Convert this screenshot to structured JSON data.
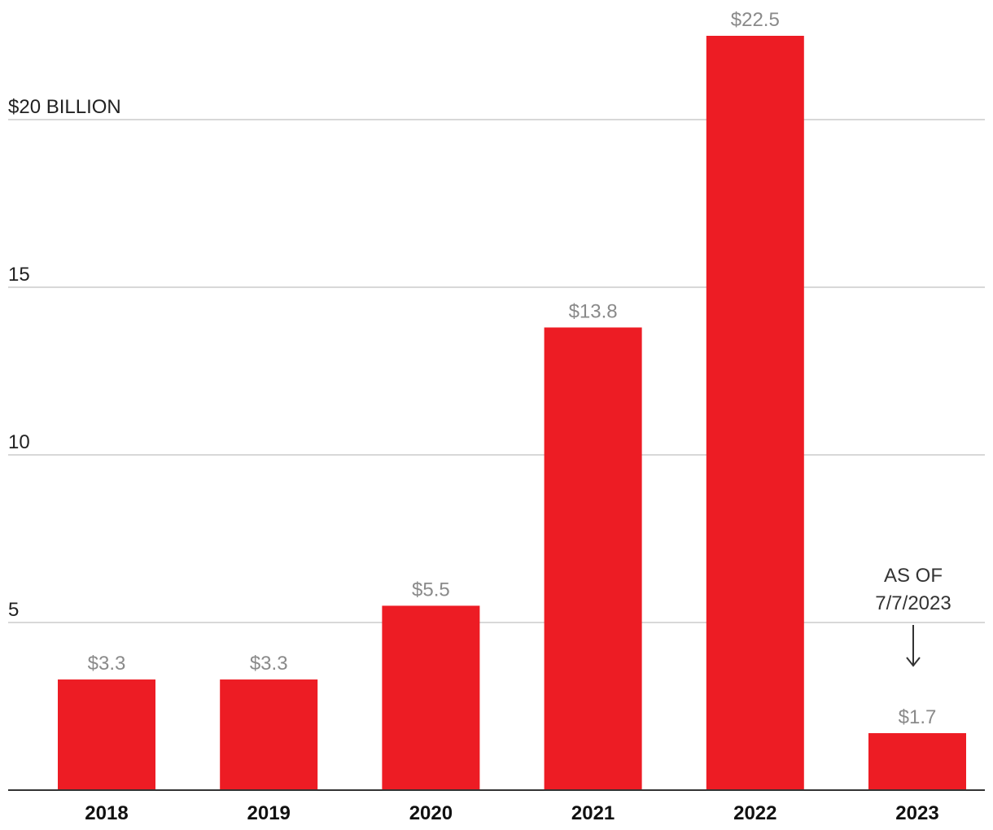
{
  "chart_data": {
    "type": "bar",
    "title": "",
    "xlabel": "",
    "ylabel": "",
    "unit_label": "$20 BILLION",
    "categories": [
      "2018",
      "2019",
      "2020",
      "2021",
      "2022",
      "2023"
    ],
    "values": [
      3.3,
      3.3,
      5.5,
      13.8,
      22.5,
      1.7
    ],
    "data_labels": [
      "$3.3",
      "$3.3",
      "$5.5",
      "$13.8",
      "$22.5",
      "$1.7"
    ],
    "ylim": [
      0,
      23.5
    ],
    "y_ticks": [
      5,
      10,
      15,
      20
    ],
    "y_tick_labels": [
      "5",
      "10",
      "15",
      "$20 BILLION"
    ],
    "grid": true,
    "bar_color": "#ed1c24",
    "annotation": {
      "category": "2023",
      "lines": [
        "AS OF",
        "7/7/2023"
      ]
    }
  }
}
